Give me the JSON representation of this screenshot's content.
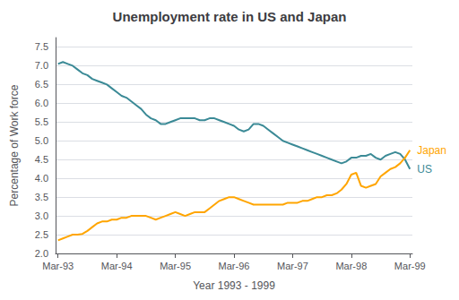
{
  "chart_data": {
    "type": "line",
    "title": "Unemployment rate in US and Japan",
    "xlabel": "Year 1993 - 1999",
    "ylabel": "Percentage of Work force",
    "categories": [
      "Mar-93",
      null,
      null,
      null,
      null,
      null,
      null,
      null,
      null,
      null,
      null,
      null,
      "Mar-94",
      null,
      null,
      null,
      null,
      null,
      null,
      null,
      null,
      null,
      null,
      null,
      "Mar-95",
      null,
      null,
      null,
      null,
      null,
      null,
      null,
      null,
      null,
      null,
      null,
      "Mar-96",
      null,
      null,
      null,
      null,
      null,
      null,
      null,
      null,
      null,
      null,
      null,
      "Mar-97",
      null,
      null,
      null,
      null,
      null,
      null,
      null,
      null,
      null,
      null,
      null,
      "Mar-98",
      null,
      null,
      null,
      null,
      null,
      null,
      null,
      null,
      null,
      null,
      null,
      "Mar-99"
    ],
    "series": [
      {
        "name": "US",
        "color": "#3B8A96",
        "values": [
          7.05,
          7.1,
          7.05,
          7.0,
          6.9,
          6.8,
          6.75,
          6.65,
          6.6,
          6.55,
          6.5,
          6.4,
          6.3,
          6.2,
          6.15,
          6.05,
          5.95,
          5.85,
          5.7,
          5.6,
          5.55,
          5.45,
          5.45,
          5.5,
          5.55,
          5.6,
          5.6,
          5.6,
          5.6,
          5.55,
          5.55,
          5.6,
          5.6,
          5.55,
          5.5,
          5.45,
          5.4,
          5.3,
          5.25,
          5.3,
          5.45,
          5.45,
          5.4,
          5.3,
          5.2,
          5.1,
          5.0,
          4.95,
          4.9,
          4.85,
          4.8,
          4.75,
          4.7,
          4.65,
          4.6,
          4.55,
          4.5,
          4.45,
          4.4,
          4.45,
          4.55,
          4.55,
          4.6,
          4.6,
          4.65,
          4.55,
          4.5,
          4.6,
          4.65,
          4.7,
          4.65,
          4.5,
          4.25
        ]
      },
      {
        "name": "Japan",
        "color": "#FFA500",
        "values": [
          2.35,
          2.4,
          2.45,
          2.5,
          2.5,
          2.52,
          2.6,
          2.7,
          2.8,
          2.85,
          2.85,
          2.9,
          2.9,
          2.95,
          2.95,
          3.0,
          3.0,
          3.0,
          3.0,
          2.95,
          2.9,
          2.95,
          3.0,
          3.05,
          3.1,
          3.05,
          3.0,
          3.05,
          3.1,
          3.1,
          3.1,
          3.2,
          3.3,
          3.4,
          3.45,
          3.5,
          3.5,
          3.45,
          3.4,
          3.35,
          3.3,
          3.3,
          3.3,
          3.3,
          3.3,
          3.3,
          3.3,
          3.35,
          3.35,
          3.35,
          3.4,
          3.4,
          3.45,
          3.5,
          3.5,
          3.55,
          3.55,
          3.6,
          3.7,
          3.85,
          4.1,
          4.15,
          3.8,
          3.75,
          3.8,
          3.85,
          4.05,
          4.15,
          4.25,
          4.3,
          4.4,
          4.55,
          4.75
        ]
      }
    ],
    "ylim": [
      2.0,
      7.75
    ],
    "yticks": [
      {
        "value": 2,
        "label": "2.0"
      },
      2.5,
      {
        "value": 3,
        "label": "3.0"
      },
      3.5,
      {
        "value": 4,
        "label": "4.0"
      },
      4.5,
      {
        "value": 5,
        "label": "5.0"
      },
      5.5,
      {
        "value": 6,
        "label": "6.0"
      },
      6.5,
      {
        "value": 7,
        "label": "7.0"
      },
      7.5
    ],
    "grid": true
  }
}
